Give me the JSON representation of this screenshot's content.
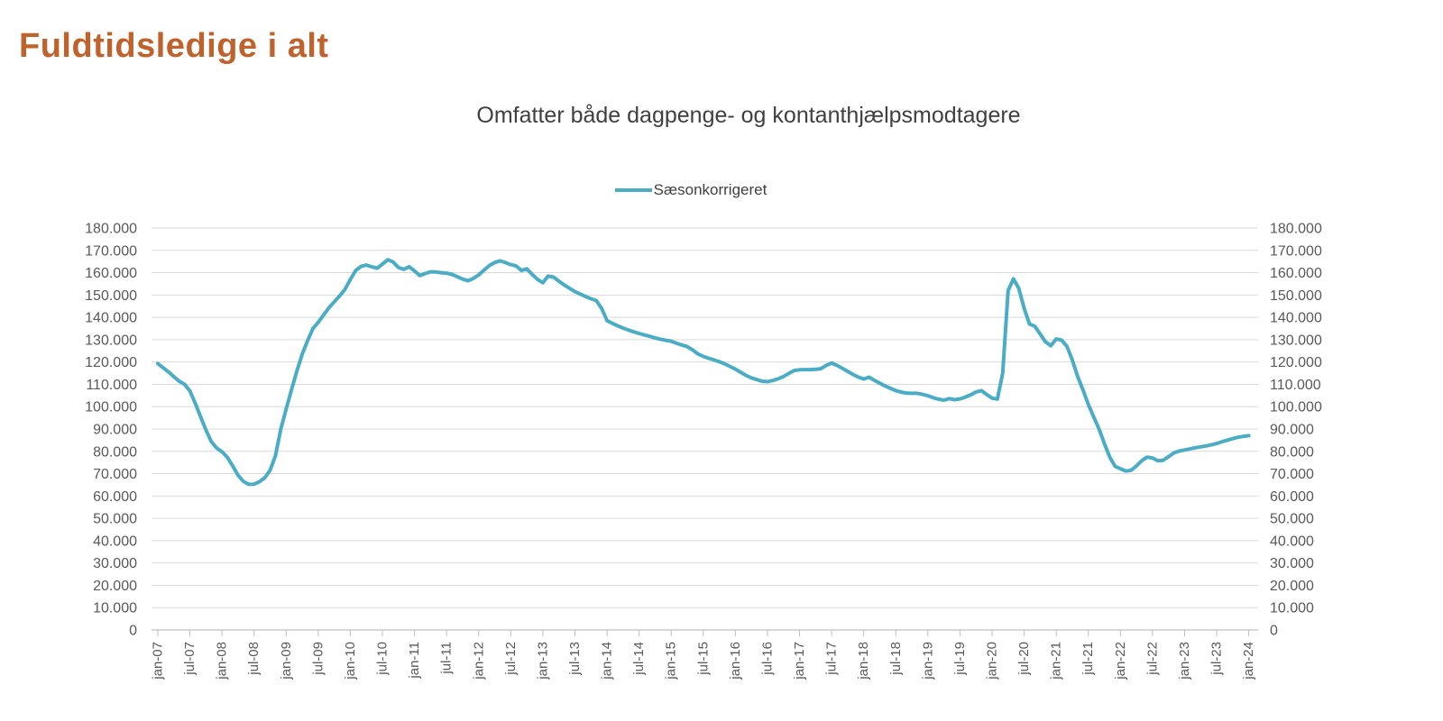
{
  "page": {
    "title": "Fuldtidsledige i alt"
  },
  "colors": {
    "title": "#C0622B",
    "series_line": "#4BACC6",
    "gridline": "#D9D9D9",
    "axis_line": "#BFBFBF",
    "tick_label": "#595959",
    "subtitle_text": "#404040"
  },
  "chart_data": {
    "type": "line",
    "title": "Omfatter både dagpenge- og kontanthjælpsmodtagere",
    "legend_label": "Sæsonkorrigeret",
    "legend_position": "top",
    "grid": true,
    "xlabel": "",
    "ylabel": "",
    "ylim": [
      0,
      180000
    ],
    "y_tick_step": 10000,
    "y_tick_labels": [
      "0",
      "10.000",
      "20.000",
      "30.000",
      "40.000",
      "50.000",
      "60.000",
      "70.000",
      "80.000",
      "90.000",
      "100.000",
      "110.000",
      "120.000",
      "130.000",
      "140.000",
      "150.000",
      "160.000",
      "170.000",
      "180.000"
    ],
    "y_axis_sides": [
      "left",
      "right"
    ],
    "x_start": "jan-07",
    "x_end": "jan-24",
    "x_interval_months": 1,
    "x_tick_labels": [
      "jan-07",
      "jul-07",
      "jan-08",
      "jul-08",
      "jan-09",
      "jul-09",
      "jan-10",
      "jul-10",
      "jan-11",
      "jul-11",
      "jan-12",
      "jul-12",
      "jan-13",
      "jul-13",
      "jan-14",
      "jul-14",
      "jan-15",
      "jul-15",
      "jan-16",
      "jul-16",
      "jan-17",
      "jul-17",
      "jan-18",
      "jul-18",
      "jan-19",
      "jul-19",
      "jan-20",
      "jul-20",
      "jan-21",
      "jul-21",
      "jan-22",
      "jul-22",
      "jan-23",
      "jul-23",
      "jan-24"
    ],
    "x_tick_every": 6,
    "series": [
      {
        "name": "Sæsonkorrigeret",
        "color": "#4BACC6",
        "values": [
          119300,
          117400,
          115500,
          113400,
          111400,
          110000,
          107000,
          101500,
          95500,
          89500,
          84300,
          81500,
          79800,
          77300,
          73500,
          69300,
          66500,
          65200,
          65300,
          66400,
          68200,
          71500,
          78000,
          90000,
          99000,
          107500,
          116000,
          123500,
          129500,
          135000,
          137800,
          141000,
          144300,
          147000,
          149600,
          152500,
          157000,
          161000,
          162800,
          163400,
          162600,
          162000,
          163800,
          165800,
          164800,
          162300,
          161500,
          162700,
          160800,
          158700,
          159600,
          160400,
          160300,
          160000,
          159800,
          159200,
          158200,
          157100,
          156400,
          157400,
          159000,
          161200,
          163200,
          164600,
          165300,
          164500,
          163600,
          163000,
          161000,
          161700,
          159200,
          157000,
          155500,
          158500,
          158000,
          156200,
          154500,
          153000,
          151500,
          150400,
          149300,
          148300,
          147500,
          144000,
          138500,
          137300,
          136200,
          135200,
          134300,
          133500,
          132800,
          132100,
          131500,
          130800,
          130200,
          129700,
          129300,
          128400,
          127600,
          126900,
          125400,
          123600,
          122500,
          121700,
          120900,
          120100,
          119200,
          118000,
          116800,
          115400,
          114000,
          112900,
          112100,
          111400,
          111200,
          111700,
          112500,
          113500,
          114900,
          116200,
          116500,
          116600,
          116600,
          116700,
          117000,
          118500,
          119500,
          118500,
          117200,
          115800,
          114400,
          113200,
          112400,
          113200,
          111800,
          110500,
          109300,
          108200,
          107200,
          106500,
          106100,
          106000,
          106000,
          105500,
          104900,
          104000,
          103300,
          102900,
          103600,
          103100,
          103500,
          104300,
          105300,
          106600,
          107200,
          105400,
          103800,
          103400,
          115000,
          152000,
          157200,
          153000,
          144000,
          137000,
          136000,
          132500,
          129000,
          127300,
          130300,
          129800,
          127000,
          121000,
          113500,
          107500,
          101000,
          95500,
          90000,
          83500,
          77500,
          73300,
          72200,
          71200,
          71500,
          73500,
          75800,
          77400,
          77000,
          75800,
          76000,
          77600,
          79300,
          80100,
          80600,
          81100,
          81600,
          82000,
          82400,
          82900,
          83500,
          84300,
          85000,
          85700,
          86300,
          86700,
          87000
        ]
      }
    ]
  }
}
